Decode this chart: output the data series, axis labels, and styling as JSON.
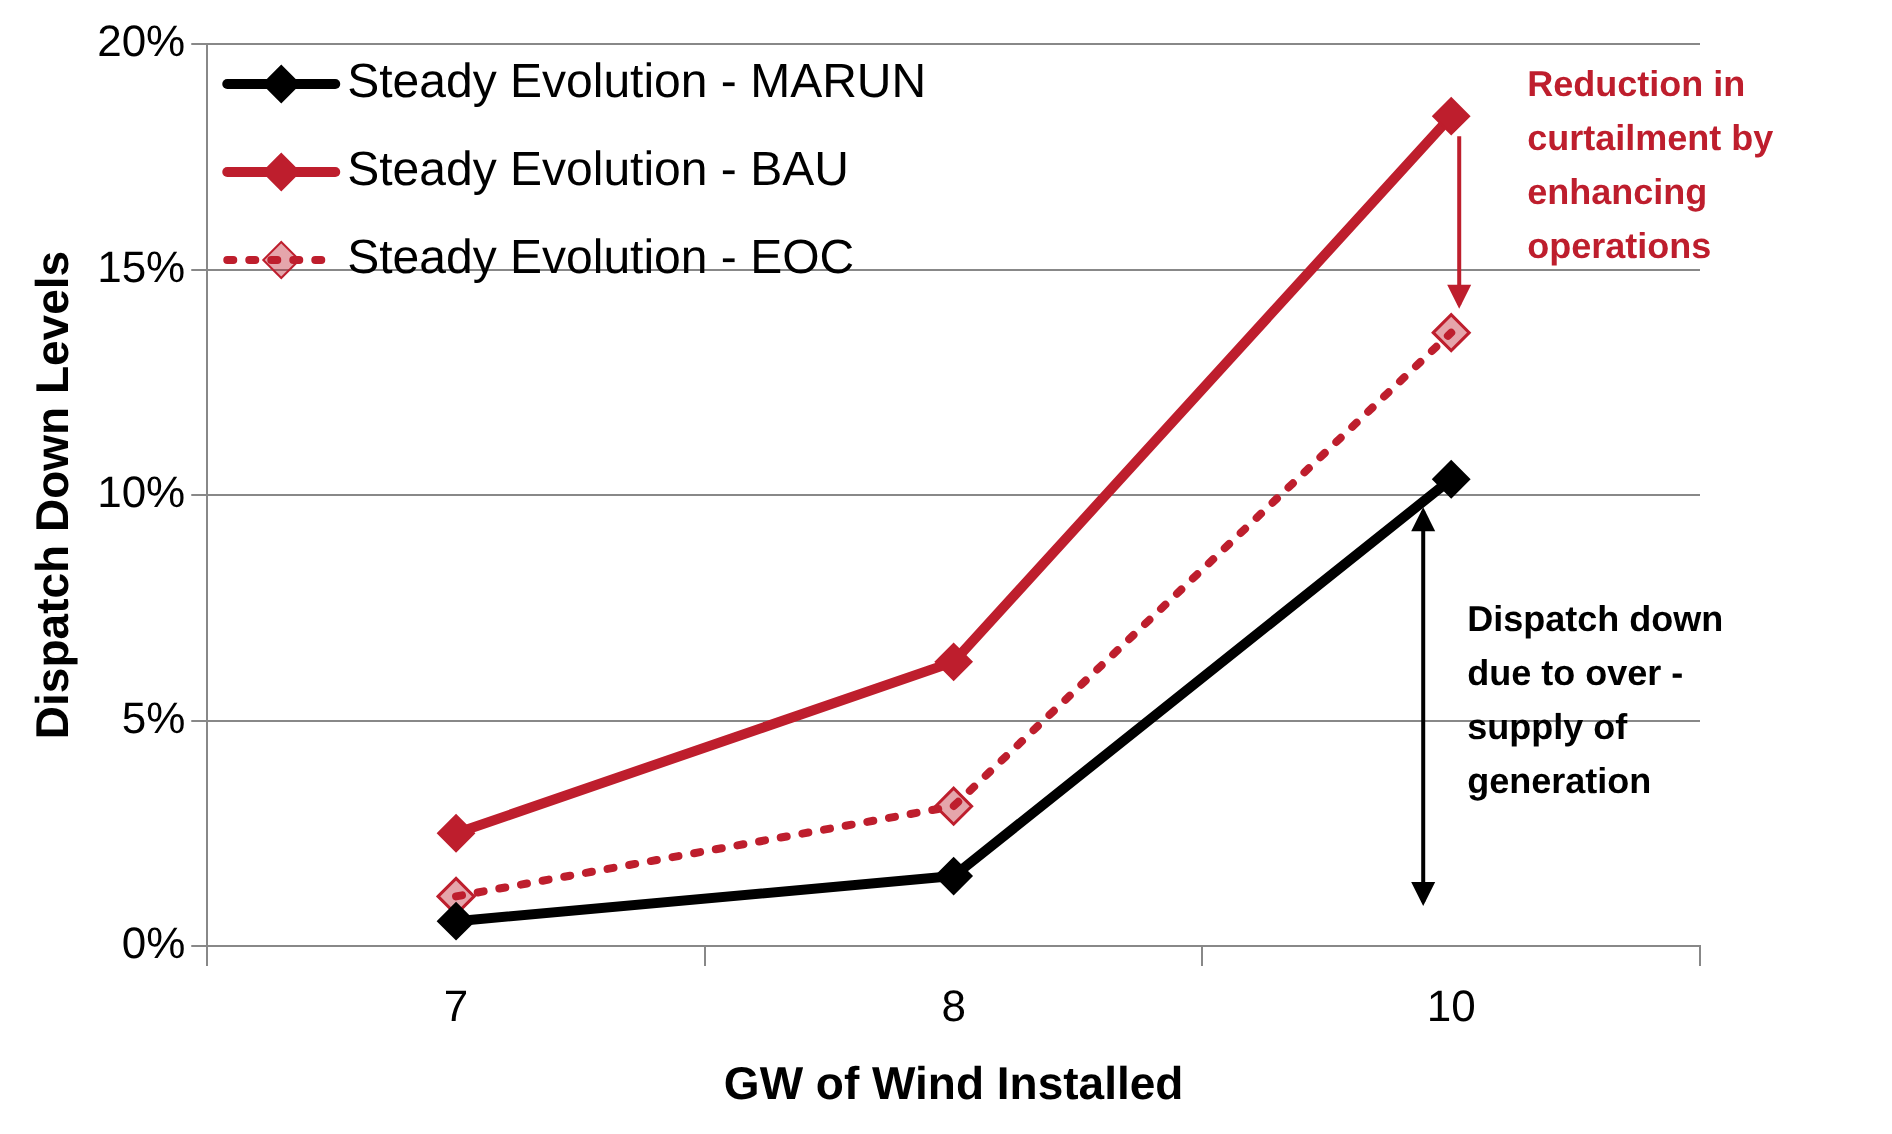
{
  "chart_data": {
    "type": "line",
    "xlabel": "GW of Wind Installed",
    "ylabel": "Dispatch Down Levels",
    "categories": [
      "7",
      "8",
      "10"
    ],
    "series": [
      {
        "name": "Steady Evolution - MARUN",
        "color": "#000000",
        "values": [
          0.55,
          1.55,
          10.35
        ],
        "line_style": "solid"
      },
      {
        "name": "Steady Evolution - BAU",
        "color": "#be1e2d",
        "values": [
          2.5,
          6.3,
          18.4
        ],
        "line_style": "solid"
      },
      {
        "name": "Steady Evolution - EOC",
        "color": "#be1e2d",
        "values": [
          1.1,
          3.1,
          13.6
        ],
        "line_style": "dotted"
      }
    ],
    "ylim": [
      0,
      20
    ],
    "yticks": [
      {
        "value": 0,
        "label": "0%"
      },
      {
        "value": 5,
        "label": "5%"
      },
      {
        "value": 10,
        "label": "10%"
      },
      {
        "value": 15,
        "label": "15%"
      },
      {
        "value": 20,
        "label": "20%"
      }
    ],
    "grid": "y",
    "legend": "top left",
    "marker": "diamond",
    "annotations": [
      "Reduction in curtailment by enhancing operations",
      "Dispatch down due to over - supply of generation"
    ]
  }
}
